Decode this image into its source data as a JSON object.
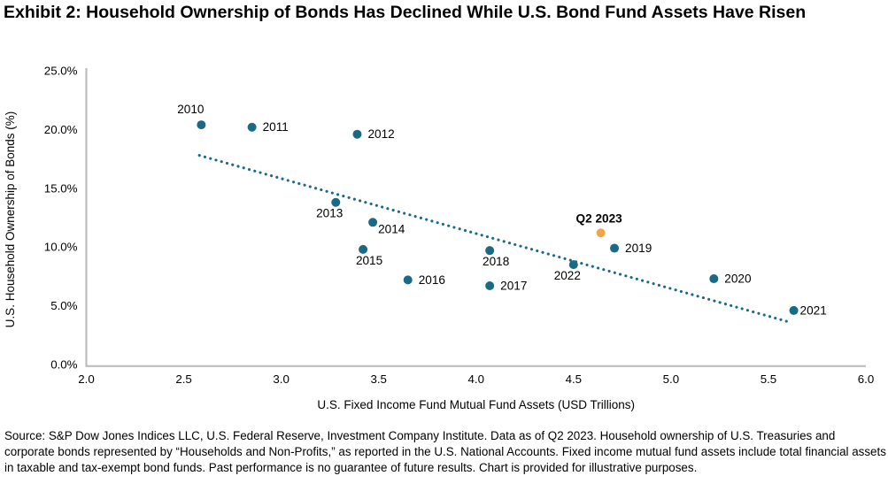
{
  "title": "Exhibit 2: Household Ownership of Bonds Has Declined While U.S. Bond Fund Assets Have Risen",
  "chart_data": {
    "type": "scatter",
    "xlabel": "U.S. Fixed Income Fund Mutual Fund Assets (USD Trillions)",
    "ylabel": "U.S. Household Ownership of Bonds (%)",
    "xlim": [
      2.0,
      6.0
    ],
    "ylim": [
      0,
      25
    ],
    "x_ticks": [
      {
        "value": 2.0,
        "label": "2.0"
      },
      {
        "value": 2.5,
        "label": "2.5"
      },
      {
        "value": 3.0,
        "label": "3.0"
      },
      {
        "value": 3.5,
        "label": "3.5"
      },
      {
        "value": 4.0,
        "label": "4.0"
      },
      {
        "value": 4.5,
        "label": "4.5"
      },
      {
        "value": 5.0,
        "label": "5.0"
      },
      {
        "value": 5.5,
        "label": "5.5"
      },
      {
        "value": 6.0,
        "label": "6.0"
      }
    ],
    "y_ticks": [
      {
        "value": 0,
        "label": "0.0%"
      },
      {
        "value": 5,
        "label": "5.0%"
      },
      {
        "value": 10,
        "label": "10.0%"
      },
      {
        "value": 15,
        "label": "15.0%"
      },
      {
        "value": 20,
        "label": "20.0%"
      },
      {
        "value": 25,
        "label": "25.0%"
      }
    ],
    "grid": false,
    "legend": "none",
    "colors": {
      "annual_point": "#1B6A85",
      "latest_point": "#F3A447",
      "trendline": "#1B6A85",
      "axis_line": "#BDBDBD",
      "text": "#000000"
    },
    "series": [
      {
        "name": "annual-observations",
        "color_key": "annual_point",
        "points": [
          {
            "label": "2010",
            "x": 2.59,
            "y": 20.4,
            "label_pos": "above-left"
          },
          {
            "label": "2011",
            "x": 2.85,
            "y": 20.2,
            "label_pos": "right"
          },
          {
            "label": "2012",
            "x": 3.39,
            "y": 19.6,
            "label_pos": "right"
          },
          {
            "label": "2013",
            "x": 3.28,
            "y": 13.8,
            "label_pos": "below-left"
          },
          {
            "label": "2014",
            "x": 3.47,
            "y": 12.1,
            "label_pos": "below-right"
          },
          {
            "label": "2015",
            "x": 3.42,
            "y": 9.8,
            "label_pos": "below"
          },
          {
            "label": "2016",
            "x": 3.65,
            "y": 7.2,
            "label_pos": "right"
          },
          {
            "label": "2017",
            "x": 4.07,
            "y": 6.7,
            "label_pos": "right"
          },
          {
            "label": "2018",
            "x": 4.07,
            "y": 9.7,
            "label_pos": "below"
          },
          {
            "label": "2019",
            "x": 4.71,
            "y": 9.9,
            "label_pos": "right"
          },
          {
            "label": "2020",
            "x": 5.22,
            "y": 7.3,
            "label_pos": "right"
          },
          {
            "label": "2021",
            "x": 5.63,
            "y": 4.6,
            "label_pos": "right-tight"
          },
          {
            "label": "2022",
            "x": 4.5,
            "y": 8.5,
            "label_pos": "below-left"
          }
        ]
      },
      {
        "name": "latest-quarter",
        "color_key": "latest_point",
        "points": [
          {
            "label": "Q2 2023",
            "x": 4.64,
            "y": 11.2,
            "label_pos": "above",
            "bold": true
          }
        ]
      }
    ],
    "trendline": {
      "x1": 2.58,
      "y1": 17.8,
      "x2": 5.61,
      "y2": 3.6,
      "style": "dotted"
    }
  },
  "footer": {
    "source_text": "Source: S&P Dow Jones Indices LLC, U.S. Federal Reserve, Investment Company Institute. Data as of Q2 2023. Household ownership of U.S. Treasuries and corporate bonds represented by “Households and Non-Profits,” as reported in the U.S. National Accounts. Fixed income mutual fund assets include total financial assets in taxable and tax-exempt bond funds. Past performance is no guarantee of future results. Chart is provided for illustrative purposes."
  }
}
